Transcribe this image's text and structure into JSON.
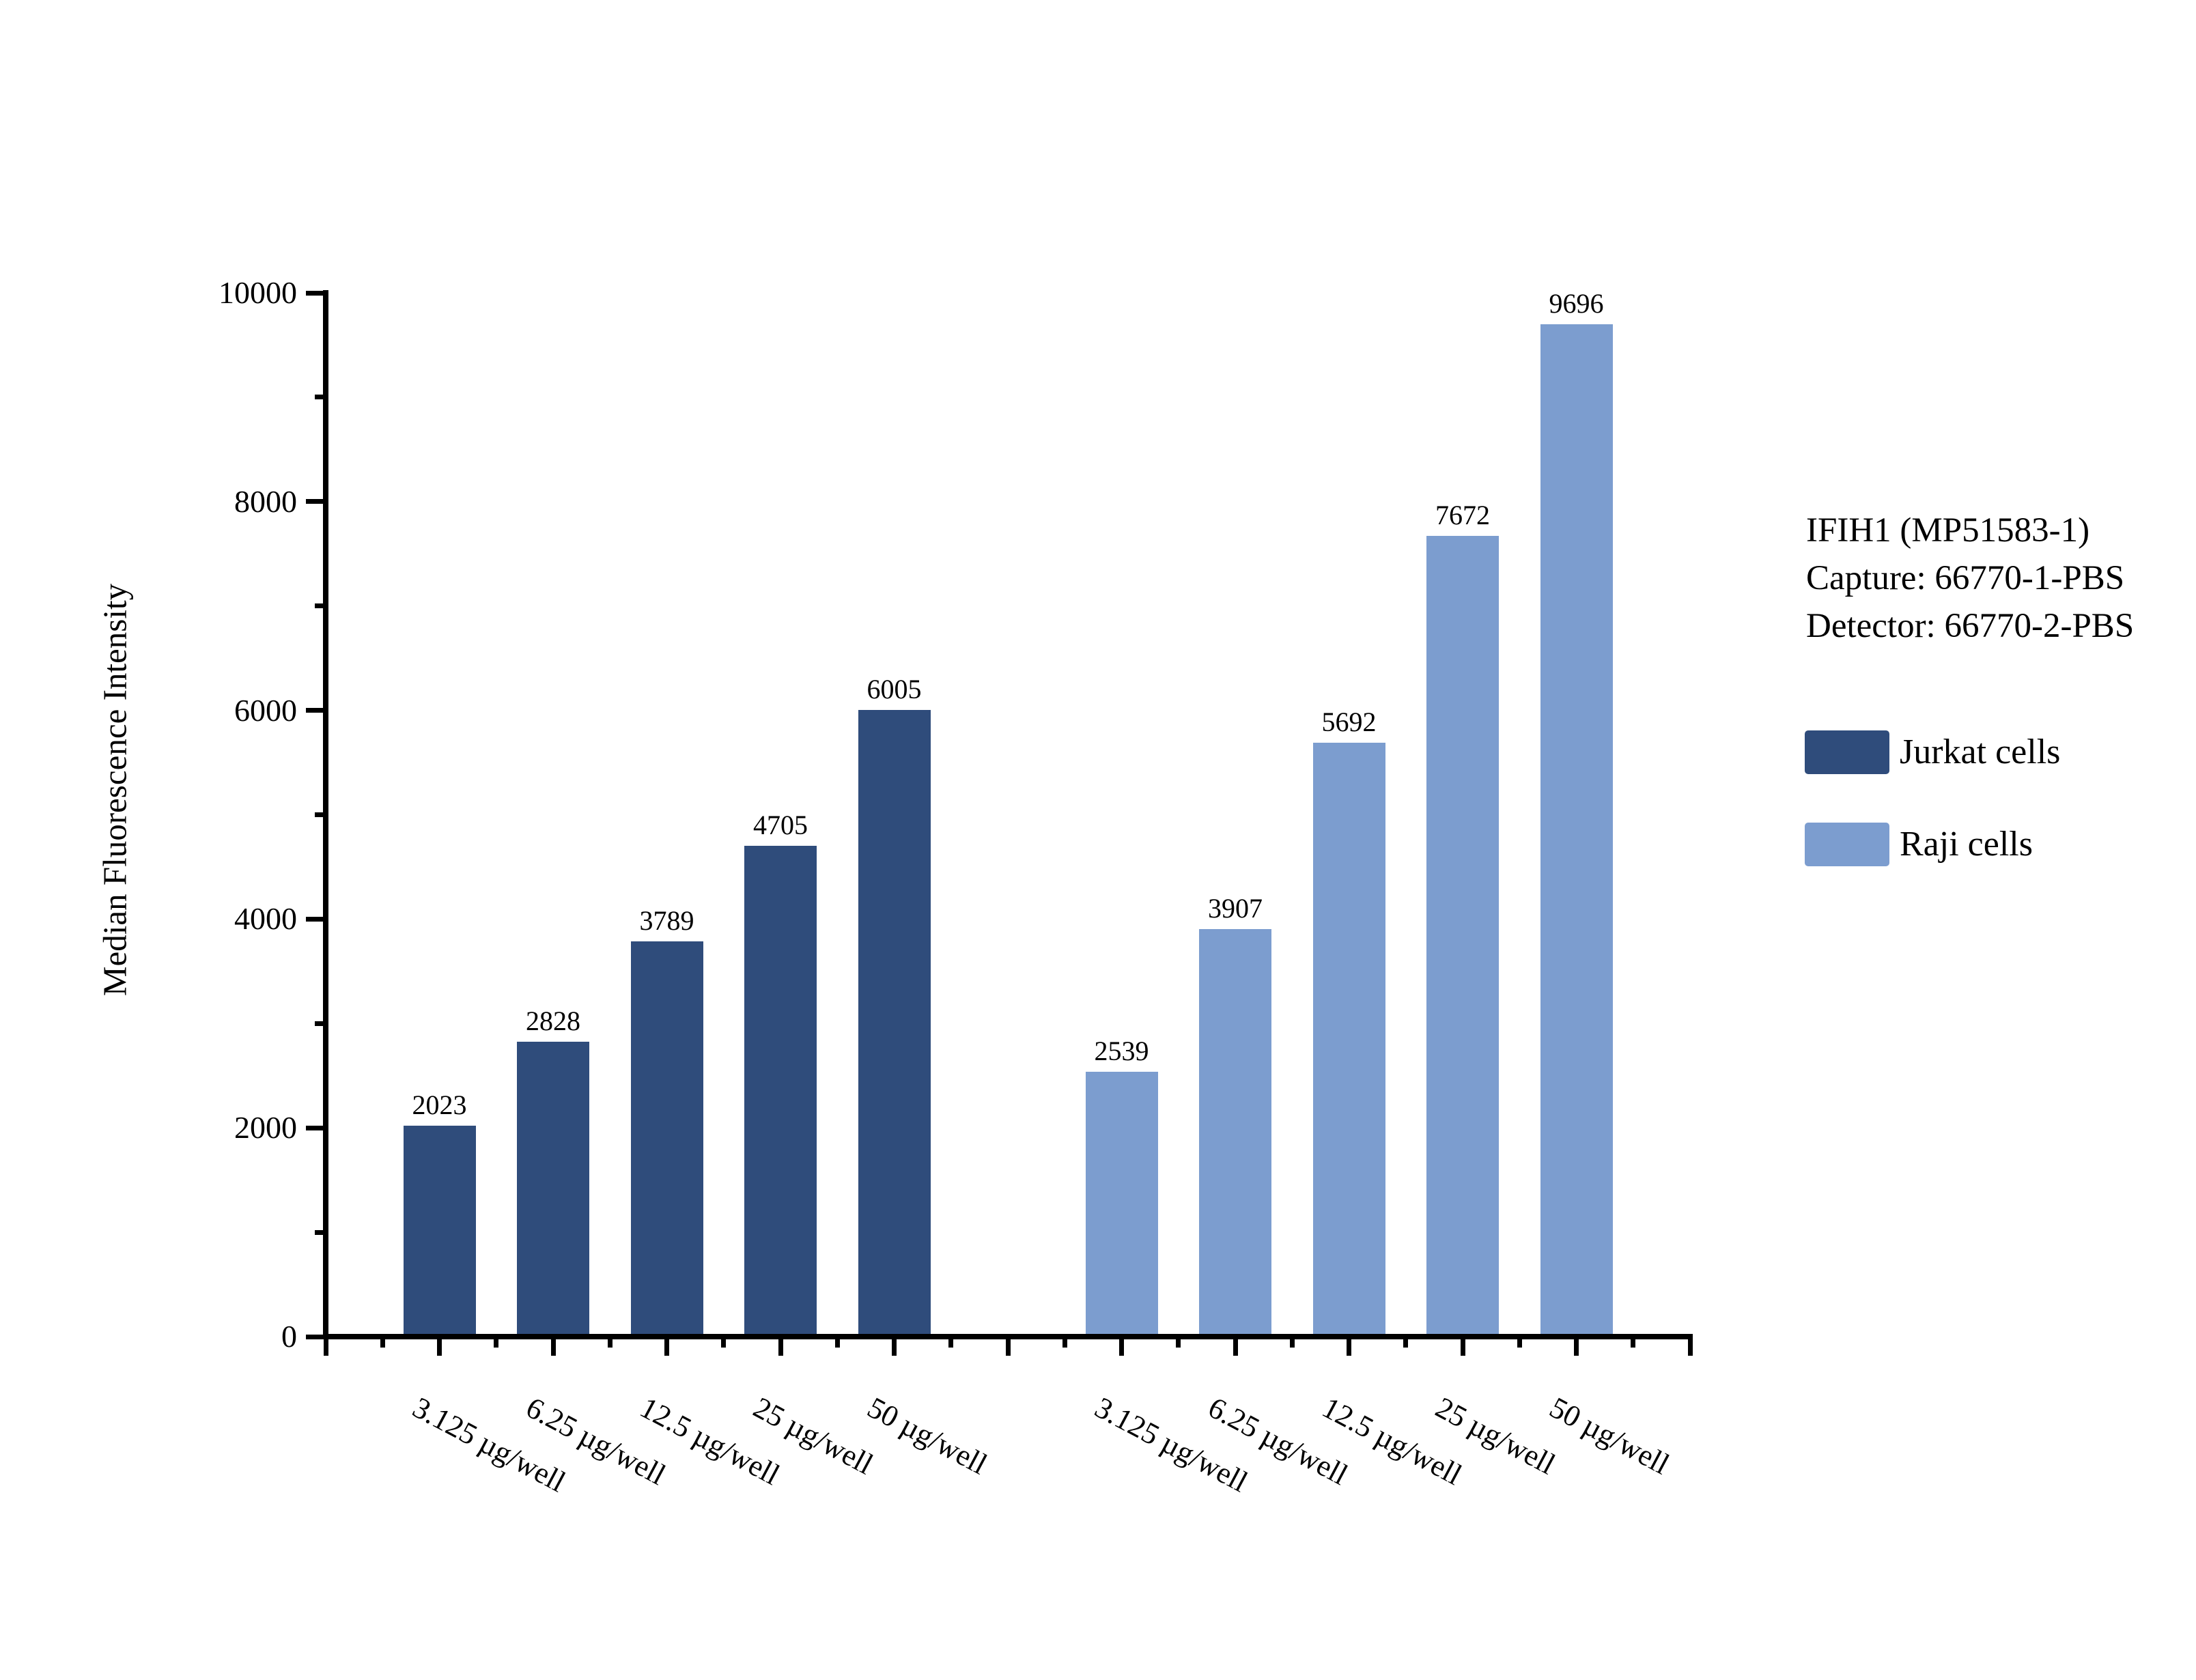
{
  "chart_data": {
    "type": "bar",
    "title": "",
    "xlabel": "",
    "ylabel": "Median Fluorescence Intensity",
    "ylim": [
      0,
      10000
    ],
    "y_major_ticks": [
      0,
      2000,
      4000,
      6000,
      8000,
      10000
    ],
    "y_tick_labels": [
      "0",
      "2000",
      "4000",
      "6000",
      "8000",
      "10000"
    ],
    "y_minor_step": 1000,
    "grid": false,
    "legend_position": "right",
    "categories": [
      "3.125 µg/well",
      "6.25 µg/well",
      "12.5 µg/well",
      "25 µg/well",
      "50 µg/well"
    ],
    "series": [
      {
        "name": "Jurkat cells",
        "color": "#2F4C7B",
        "values": [
          2023,
          2828,
          3789,
          4705,
          6005
        ]
      },
      {
        "name": "Raji cells",
        "color": "#7C9DCF",
        "values": [
          2539,
          3907,
          5692,
          7672,
          9696
        ]
      }
    ]
  },
  "legend": {
    "info_lines": [
      "IFIH1 (MP51583-1)",
      "Capture: 66770-1-PBS",
      "Detector: 66770-2-PBS"
    ],
    "entries": [
      {
        "label": "Jurkat cells",
        "color": "#2F4C7B"
      },
      {
        "label": "Raji cells",
        "color": "#7C9DCF"
      }
    ]
  },
  "colors": {
    "axis": "#000000",
    "background": "#ffffff",
    "jurkat": "#2F4C7B",
    "raji": "#7C9DCF"
  }
}
